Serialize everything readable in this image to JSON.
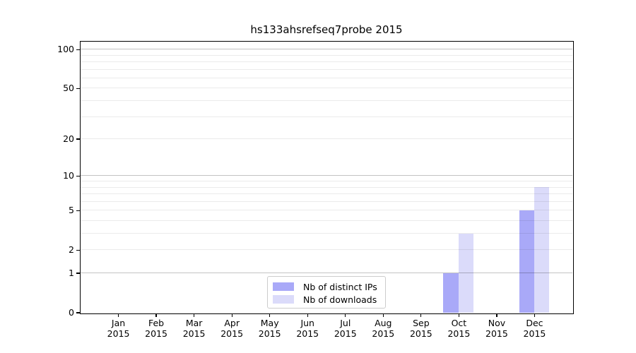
{
  "title": "hs133ahsrefseq7probe 2015",
  "colors": {
    "distinct_ips_bar": "#a9a9f8",
    "downloads_bar": "#dbdbfa",
    "grid_major": "#c3c3c3",
    "grid_minor": "#ebebeb",
    "spine": "#000000",
    "legend_border": "#cccccc",
    "text": "#000000"
  },
  "legend": {
    "items": [
      {
        "label": "Nb of distinct IPs",
        "color": "#a9a9f8"
      },
      {
        "label": "Nb of downloads",
        "color": "#dbdbfa"
      }
    ]
  },
  "chart_data": {
    "type": "bar",
    "title": "hs133ahsrefseq7probe 2015",
    "categories": [
      "Jan",
      "Feb",
      "Mar",
      "Apr",
      "May",
      "Jun",
      "Jul",
      "Aug",
      "Sep",
      "Oct",
      "Nov",
      "Dec"
    ],
    "year_label": "2015",
    "series": [
      {
        "name": "Nb of distinct IPs",
        "color": "#a9a9f8",
        "values": [
          0,
          0,
          0,
          0,
          0,
          0,
          0,
          0,
          0,
          1,
          0,
          5
        ]
      },
      {
        "name": "Nb of downloads",
        "color": "#dbdbfa",
        "values": [
          0,
          0,
          0,
          0,
          0,
          0,
          0,
          0,
          0,
          3,
          0,
          8
        ]
      }
    ],
    "xlabel": "",
    "ylabel": "",
    "yscale": "log1p",
    "ylim": [
      0,
      115
    ],
    "y_ticks": [
      100,
      50,
      20,
      10,
      5,
      2,
      1,
      0
    ],
    "grid_major_values": [
      1,
      10,
      100
    ],
    "grid_minor_values": [
      2,
      3,
      4,
      5,
      6,
      7,
      8,
      9,
      20,
      30,
      40,
      50,
      60,
      70,
      80,
      90
    ],
    "legend_position": "bottom-center",
    "grid": "on"
  }
}
